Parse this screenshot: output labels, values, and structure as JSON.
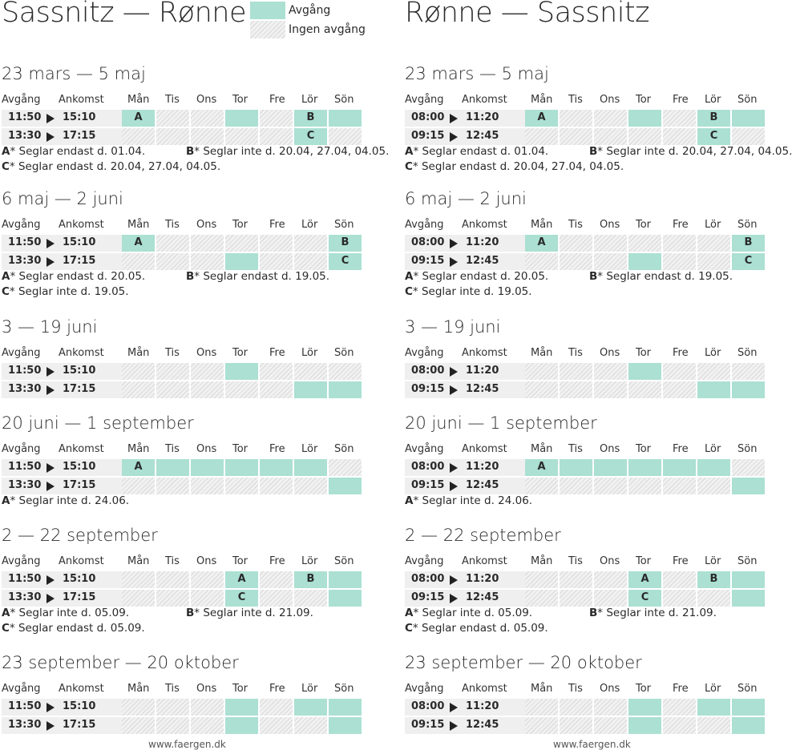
{
  "colors": {
    "on": "#abe0d2",
    "off_stripe": "#d9d9d9",
    "time_bg": "#efefef"
  },
  "legend": {
    "departure": "Avgång",
    "no_departure": "Ingen avgång"
  },
  "headers": {
    "avgang": "Avgång",
    "ankomst": "Ankomst",
    "days": [
      "Mån",
      "Tis",
      "Ons",
      "Tor",
      "Fre",
      "Lör",
      "Sön"
    ]
  },
  "columns": [
    {
      "title": "Sassnitz — Rønne",
      "footer": "www.faergen.dk",
      "seasons": [
        {
          "heading": "23 mars — 5 maj",
          "rows": [
            {
              "dep": "11:50",
              "arr": "15:10",
              "days": [
                1,
                0,
                0,
                1,
                0,
                1,
                1
              ],
              "letters": [
                "A",
                "",
                "",
                "",
                "",
                "B",
                ""
              ]
            },
            {
              "dep": "13:30",
              "arr": "17:15",
              "days": [
                0,
                0,
                0,
                0,
                0,
                1,
                0
              ],
              "letters": [
                "",
                "",
                "",
                "",
                "",
                "C",
                ""
              ]
            }
          ],
          "notes": [
            {
              "letter": "A",
              "text": "* Seglar endast d. 01.04."
            },
            {
              "letter": "B",
              "text": "* Seglar inte d. 20.04, 27.04, 04.05."
            },
            {
              "letter": "C",
              "text": "* Seglar endast d. 20.04, 27.04, 04.05."
            }
          ]
        },
        {
          "heading": "6 maj — 2 juni",
          "rows": [
            {
              "dep": "11:50",
              "arr": "15:10",
              "days": [
                1,
                0,
                0,
                0,
                0,
                0,
                1
              ],
              "letters": [
                "A",
                "",
                "",
                "",
                "",
                "",
                "B"
              ]
            },
            {
              "dep": "13:30",
              "arr": "17:15",
              "days": [
                0,
                0,
                0,
                1,
                0,
                0,
                1
              ],
              "letters": [
                "",
                "",
                "",
                "",
                "",
                "",
                "C"
              ]
            }
          ],
          "notes": [
            {
              "letter": "A",
              "text": "* Seglar endast d. 20.05."
            },
            {
              "letter": "B",
              "text": "* Seglar endast d. 19.05."
            },
            {
              "letter": "C",
              "text": "* Seglar inte d. 19.05."
            }
          ]
        },
        {
          "heading": "3 — 19 juni",
          "rows": [
            {
              "dep": "11:50",
              "arr": "15:10",
              "days": [
                0,
                0,
                0,
                1,
                0,
                0,
                0
              ],
              "letters": [
                "",
                "",
                "",
                "",
                "",
                "",
                ""
              ]
            },
            {
              "dep": "13:30",
              "arr": "17:15",
              "days": [
                0,
                0,
                0,
                0,
                0,
                1,
                1
              ],
              "letters": [
                "",
                "",
                "",
                "",
                "",
                "",
                ""
              ]
            }
          ],
          "notes": []
        },
        {
          "heading": "20 juni — 1 september",
          "rows": [
            {
              "dep": "11:50",
              "arr": "15:10",
              "days": [
                1,
                1,
                1,
                1,
                1,
                1,
                0
              ],
              "letters": [
                "A",
                "",
                "",
                "",
                "",
                "",
                ""
              ]
            },
            {
              "dep": "13:30",
              "arr": "17:15",
              "days": [
                0,
                0,
                0,
                0,
                0,
                0,
                1
              ],
              "letters": [
                "",
                "",
                "",
                "",
                "",
                "",
                ""
              ]
            }
          ],
          "notes": [
            {
              "letter": "A",
              "text": "* Seglar inte d. 24.06."
            }
          ]
        },
        {
          "heading": "2 — 22 september",
          "rows": [
            {
              "dep": "11:50",
              "arr": "15:10",
              "days": [
                0,
                0,
                0,
                1,
                0,
                1,
                1
              ],
              "letters": [
                "",
                "",
                "",
                "A",
                "",
                "B",
                ""
              ]
            },
            {
              "dep": "13:30",
              "arr": "17:15",
              "days": [
                0,
                0,
                0,
                1,
                0,
                0,
                1
              ],
              "letters": [
                "",
                "",
                "",
                "C",
                "",
                "",
                ""
              ]
            }
          ],
          "notes": [
            {
              "letter": "A",
              "text": "* Seglar inte d. 05.09."
            },
            {
              "letter": "B",
              "text": "* Seglar inte d. 21.09."
            },
            {
              "letter": "C",
              "text": "* Seglar endast d. 05.09."
            }
          ]
        },
        {
          "heading": "23 september — 20 oktober",
          "rows": [
            {
              "dep": "11:50",
              "arr": "15:10",
              "days": [
                0,
                0,
                0,
                1,
                0,
                1,
                1
              ],
              "letters": [
                "",
                "",
                "",
                "",
                "",
                "",
                ""
              ]
            },
            {
              "dep": "13:30",
              "arr": "17:15",
              "days": [
                0,
                0,
                0,
                1,
                0,
                0,
                1
              ],
              "letters": [
                "",
                "",
                "",
                "",
                "",
                "",
                ""
              ]
            }
          ],
          "notes": []
        }
      ]
    },
    {
      "title": "Rønne — Sassnitz",
      "footer": "www.faergen.dk",
      "seasons": [
        {
          "heading": "23 mars — 5 maj",
          "rows": [
            {
              "dep": "08:00",
              "arr": "11:20",
              "days": [
                1,
                0,
                0,
                1,
                0,
                1,
                1
              ],
              "letters": [
                "A",
                "",
                "",
                "",
                "",
                "B",
                ""
              ]
            },
            {
              "dep": "09:15",
              "arr": "12:45",
              "days": [
                0,
                0,
                0,
                0,
                0,
                1,
                0
              ],
              "letters": [
                "",
                "",
                "",
                "",
                "",
                "C",
                ""
              ]
            }
          ],
          "notes": [
            {
              "letter": "A",
              "text": "* Seglar endast d. 01.04."
            },
            {
              "letter": "B",
              "text": "* Seglar inte d. 20.04, 27.04, 04.05."
            },
            {
              "letter": "C",
              "text": "* Seglar endast d. 20.04, 27.04, 04.05."
            }
          ]
        },
        {
          "heading": "6 maj — 2 juni",
          "rows": [
            {
              "dep": "08:00",
              "arr": "11:20",
              "days": [
                1,
                0,
                0,
                0,
                0,
                0,
                1
              ],
              "letters": [
                "A",
                "",
                "",
                "",
                "",
                "",
                "B"
              ]
            },
            {
              "dep": "09:15",
              "arr": "12:45",
              "days": [
                0,
                0,
                0,
                1,
                0,
                0,
                1
              ],
              "letters": [
                "",
                "",
                "",
                "",
                "",
                "",
                "C"
              ]
            }
          ],
          "notes": [
            {
              "letter": "A",
              "text": "* Seglar endast d. 20.05."
            },
            {
              "letter": "B",
              "text": "* Seglar endast d. 19.05."
            },
            {
              "letter": "C",
              "text": "* Seglar inte d. 19.05."
            }
          ]
        },
        {
          "heading": "3 — 19 juni",
          "rows": [
            {
              "dep": "08:00",
              "arr": "11:20",
              "days": [
                0,
                0,
                0,
                1,
                0,
                0,
                0
              ],
              "letters": [
                "",
                "",
                "",
                "",
                "",
                "",
                ""
              ]
            },
            {
              "dep": "09:15",
              "arr": "12:45",
              "days": [
                0,
                0,
                0,
                0,
                0,
                1,
                1
              ],
              "letters": [
                "",
                "",
                "",
                "",
                "",
                "",
                ""
              ]
            }
          ],
          "notes": []
        },
        {
          "heading": "20 juni — 1 september",
          "rows": [
            {
              "dep": "08:00",
              "arr": "11:20",
              "days": [
                1,
                1,
                1,
                1,
                1,
                1,
                0
              ],
              "letters": [
                "A",
                "",
                "",
                "",
                "",
                "",
                ""
              ]
            },
            {
              "dep": "09:15",
              "arr": "12:45",
              "days": [
                0,
                0,
                0,
                0,
                0,
                0,
                1
              ],
              "letters": [
                "",
                "",
                "",
                "",
                "",
                "",
                ""
              ]
            }
          ],
          "notes": [
            {
              "letter": "A",
              "text": "* Seglar inte d. 24.06."
            }
          ]
        },
        {
          "heading": "2 — 22 september",
          "rows": [
            {
              "dep": "08:00",
              "arr": "11:20",
              "days": [
                0,
                0,
                0,
                1,
                0,
                1,
                1
              ],
              "letters": [
                "",
                "",
                "",
                "A",
                "",
                "B",
                ""
              ]
            },
            {
              "dep": "09:15",
              "arr": "12:45",
              "days": [
                0,
                0,
                0,
                1,
                0,
                0,
                1
              ],
              "letters": [
                "",
                "",
                "",
                "C",
                "",
                "",
                ""
              ]
            }
          ],
          "notes": [
            {
              "letter": "A",
              "text": "* Seglar inte d. 05.09."
            },
            {
              "letter": "B",
              "text": "* Seglar inte d. 21.09."
            },
            {
              "letter": "C",
              "text": "* Seglar endast d. 05.09."
            }
          ]
        },
        {
          "heading": "23 september — 20 oktober",
          "rows": [
            {
              "dep": "08:00",
              "arr": "11:20",
              "days": [
                0,
                0,
                0,
                1,
                0,
                1,
                1
              ],
              "letters": [
                "",
                "",
                "",
                "",
                "",
                "",
                ""
              ]
            },
            {
              "dep": "09:15",
              "arr": "12:45",
              "days": [
                0,
                0,
                0,
                1,
                0,
                0,
                1
              ],
              "letters": [
                "",
                "",
                "",
                "",
                "",
                "",
                ""
              ]
            }
          ],
          "notes": []
        }
      ]
    }
  ]
}
